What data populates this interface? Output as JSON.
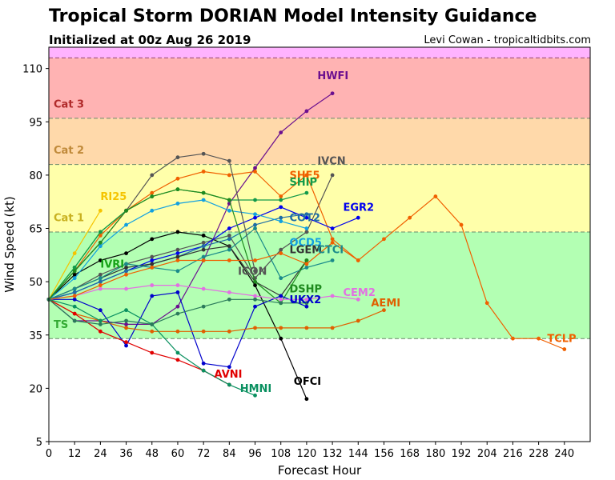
{
  "header": {
    "title": "Tropical Storm DORIAN Model Intensity Guidance",
    "subtitle": "Initialized at 00z Aug 26 2019",
    "credit": "Levi Cowan - tropicaltidbits.com"
  },
  "chart_data": {
    "type": "line",
    "title": "Tropical Storm DORIAN Model Intensity Guidance",
    "xlabel": "Forecast Hour",
    "ylabel": "Wind Speed (kt)",
    "xlim": [
      0,
      252
    ],
    "ylim": [
      5,
      116
    ],
    "xticks": [
      0,
      12,
      24,
      36,
      48,
      60,
      72,
      84,
      96,
      108,
      120,
      132,
      144,
      156,
      168,
      180,
      192,
      204,
      216,
      228,
      240
    ],
    "yticks": [
      5,
      20,
      35,
      50,
      65,
      80,
      95,
      110
    ],
    "grid": false,
    "categories": [
      {
        "name": "TS",
        "from": 34,
        "to": 64,
        "fill": "#b3ffb3",
        "label_color": "#33aa33",
        "label_y": 37
      },
      {
        "name": "Cat 1",
        "from": 64,
        "to": 83,
        "fill": "#ffffaa",
        "label_color": "#c8b020",
        "label_y": 67
      },
      {
        "name": "Cat 2",
        "from": 83,
        "to": 96,
        "fill": "#ffd9aa",
        "label_color": "#c08a3a",
        "label_y": 86
      },
      {
        "name": "Cat 3",
        "from": 96,
        "to": 113,
        "fill": "#ffb3b3",
        "label_color": "#b02a2a",
        "label_y": 99
      },
      {
        "name": "",
        "from": 113,
        "to": 116,
        "fill": "#ffb3ff",
        "label_color": "#b02a2a",
        "label_y": 0
      }
    ],
    "series": [
      {
        "name": "RI25",
        "color": "#f5c400",
        "x": [
          0,
          12,
          24
        ],
        "y": [
          45,
          58,
          70
        ],
        "label_x": 24,
        "label_y": 73
      },
      {
        "name": "IVRI",
        "color": "#17a317",
        "x": [
          0,
          12,
          24,
          36
        ],
        "y": [
          45,
          54,
          64,
          70
        ],
        "label_x": 24,
        "label_y": 54
      },
      {
        "name": "HWFI",
        "color": "#6b0f8f",
        "x": [
          0,
          12,
          24,
          36,
          48,
          60,
          72,
          84,
          96,
          108,
          120,
          132
        ],
        "y": [
          45,
          39,
          39,
          38,
          38,
          43,
          56,
          72,
          82,
          92,
          98,
          103
        ],
        "label_x": 125,
        "label_y": 107
      },
      {
        "name": "OFCI",
        "color": "#000000",
        "x": [
          0,
          12,
          24,
          36,
          48,
          60,
          72,
          84,
          96,
          108,
          120
        ],
        "y": [
          45,
          52,
          56,
          58,
          62,
          64,
          63,
          60,
          49,
          34,
          17
        ],
        "label_x": 114,
        "label_y": 21
      },
      {
        "name": "IVCN",
        "color": "#555555",
        "x": [
          0,
          12,
          24,
          36,
          48,
          60,
          72,
          84,
          96,
          108,
          120,
          132
        ],
        "y": [
          45,
          48,
          52,
          55,
          57,
          59,
          61,
          63,
          51,
          59,
          64,
          80
        ],
        "label_x": 125,
        "label_y": 83
      },
      {
        "name": "SHF5",
        "color": "#f06000",
        "x": [
          0,
          12,
          24,
          36,
          48,
          60,
          72,
          84,
          96,
          108,
          120,
          132,
          144
        ],
        "y": [
          45,
          53,
          63,
          70,
          75,
          79,
          81,
          80,
          81,
          74,
          80,
          62,
          56
        ],
        "label_x": 112,
        "label_y": 79
      },
      {
        "name": "SHIP",
        "color": "#129a4a",
        "x": [
          0,
          12,
          24,
          36,
          48,
          60,
          72,
          84,
          96,
          108,
          120
        ],
        "y": [
          45,
          54,
          64,
          70,
          74,
          76,
          75,
          73,
          73,
          73,
          75
        ],
        "label_x": 112,
        "label_y": 77
      },
      {
        "name": "EGR2",
        "color": "#0000ee",
        "x": [
          0,
          12,
          24,
          36,
          48,
          60,
          72,
          84,
          96,
          108,
          120,
          132,
          144
        ],
        "y": [
          45,
          47,
          50,
          53,
          56,
          58,
          60,
          65,
          68,
          71,
          68,
          65,
          68
        ],
        "label_x": 137,
        "label_y": 70
      },
      {
        "name": "COT2",
        "color": "#1f6ea6",
        "x": [
          0,
          12,
          24,
          36,
          48,
          60,
          72,
          84,
          96,
          108,
          120
        ],
        "y": [
          45,
          47,
          50,
          53,
          55,
          57,
          60,
          62,
          66,
          68,
          69
        ],
        "label_x": 112,
        "label_y": 67
      },
      {
        "name": "OCD5",
        "color": "#12a0e0",
        "x": [
          0,
          12,
          24,
          36,
          48,
          60,
          72,
          84,
          96,
          108,
          120
        ],
        "y": [
          45,
          51,
          60,
          66,
          70,
          72,
          73,
          70,
          69,
          67,
          65
        ],
        "label_x": 112,
        "label_y": 60
      },
      {
        "name": "LGEM",
        "color": "#333333",
        "x": [
          0,
          12,
          24,
          36,
          48,
          60,
          72,
          84,
          96,
          108,
          120
        ],
        "y": [
          45,
          48,
          51,
          54,
          55,
          57,
          59,
          60,
          50,
          46,
          56
        ],
        "label_x": 112,
        "label_y": 58
      },
      {
        "name": "CTCI",
        "color": "#1a8a8a",
        "x": [
          0,
          12,
          24,
          36,
          48,
          60,
          72,
          84,
          96,
          108,
          120,
          132
        ],
        "y": [
          45,
          48,
          51,
          55,
          54,
          53,
          57,
          59,
          65,
          51,
          54,
          56
        ],
        "label_x": 125,
        "label_y": 58
      },
      {
        "name": "ICON",
        "color": "#555555",
        "x": [
          0,
          12,
          24,
          36,
          48,
          60,
          72,
          84,
          96
        ],
        "y": [
          45,
          53,
          61,
          70,
          80,
          85,
          86,
          84,
          53
        ],
        "label_x": 88,
        "label_y": 52
      },
      {
        "name": "DSHP",
        "color": "#1e8a1e",
        "x": [
          0,
          12,
          24,
          36,
          48,
          60,
          72,
          84,
          96,
          108,
          120
        ],
        "y": [
          45,
          53,
          61,
          70,
          74,
          76,
          75,
          73,
          50,
          44,
          56
        ],
        "label_x": 112,
        "label_y": 47
      },
      {
        "name": "UKX2",
        "color": "#0000cc",
        "x": [
          0,
          12,
          24,
          36,
          48,
          60,
          72,
          84,
          96,
          108,
          120
        ],
        "y": [
          45,
          45,
          42,
          32,
          46,
          47,
          27,
          26,
          43,
          46,
          43
        ],
        "label_x": 112,
        "label_y": 44
      },
      {
        "name": "CEM2",
        "color": "#e270e2",
        "x": [
          0,
          12,
          24,
          36,
          48,
          60,
          72,
          84,
          96,
          108,
          120,
          132,
          144
        ],
        "y": [
          45,
          46,
          48,
          48,
          49,
          49,
          48,
          47,
          46,
          45,
          45,
          46,
          45
        ],
        "label_x": 137,
        "label_y": 46
      },
      {
        "name": "AEMI",
        "color": "#e06000",
        "x": [
          0,
          12,
          24,
          36,
          48,
          60,
          72,
          84,
          96,
          108,
          120,
          132,
          144,
          156
        ],
        "y": [
          45,
          41,
          39,
          37,
          36,
          36,
          36,
          36,
          37,
          37,
          37,
          37,
          39,
          42
        ],
        "label_x": 150,
        "label_y": 43
      },
      {
        "name": "TCLP",
        "color": "#f06000",
        "x": [
          0,
          12,
          24,
          36,
          48,
          60,
          72,
          84,
          96,
          108,
          120,
          132,
          144,
          156,
          168,
          180,
          192,
          204,
          216,
          228,
          240
        ],
        "y": [
          45,
          46,
          49,
          52,
          54,
          56,
          56,
          56,
          56,
          58,
          55,
          61,
          56,
          62,
          68,
          74,
          66,
          44,
          34,
          34,
          31
        ],
        "label_x": 232,
        "label_y": 33
      },
      {
        "name": "AVNI",
        "color": "#e00000",
        "x": [
          0,
          12,
          24,
          36,
          48,
          60,
          72,
          84
        ],
        "y": [
          45,
          41,
          36,
          33,
          30,
          28,
          25,
          21
        ],
        "label_x": 77,
        "label_y": 23
      },
      {
        "name": "HMNI",
        "color": "#0a9060",
        "x": [
          0,
          12,
          24,
          36,
          48,
          60,
          72,
          84,
          96
        ],
        "y": [
          45,
          43,
          39,
          42,
          38,
          30,
          25,
          21,
          18
        ],
        "label_x": 89,
        "label_y": 19
      },
      {
        "name": "",
        "color": "#2a7a5a",
        "x": [
          0,
          12,
          24,
          36,
          48,
          60,
          72,
          84,
          96,
          108,
          120
        ],
        "y": [
          45,
          39,
          38,
          39,
          38,
          41,
          43,
          45,
          45,
          44,
          44
        ],
        "label_x": 0,
        "label_y": 0
      }
    ]
  }
}
